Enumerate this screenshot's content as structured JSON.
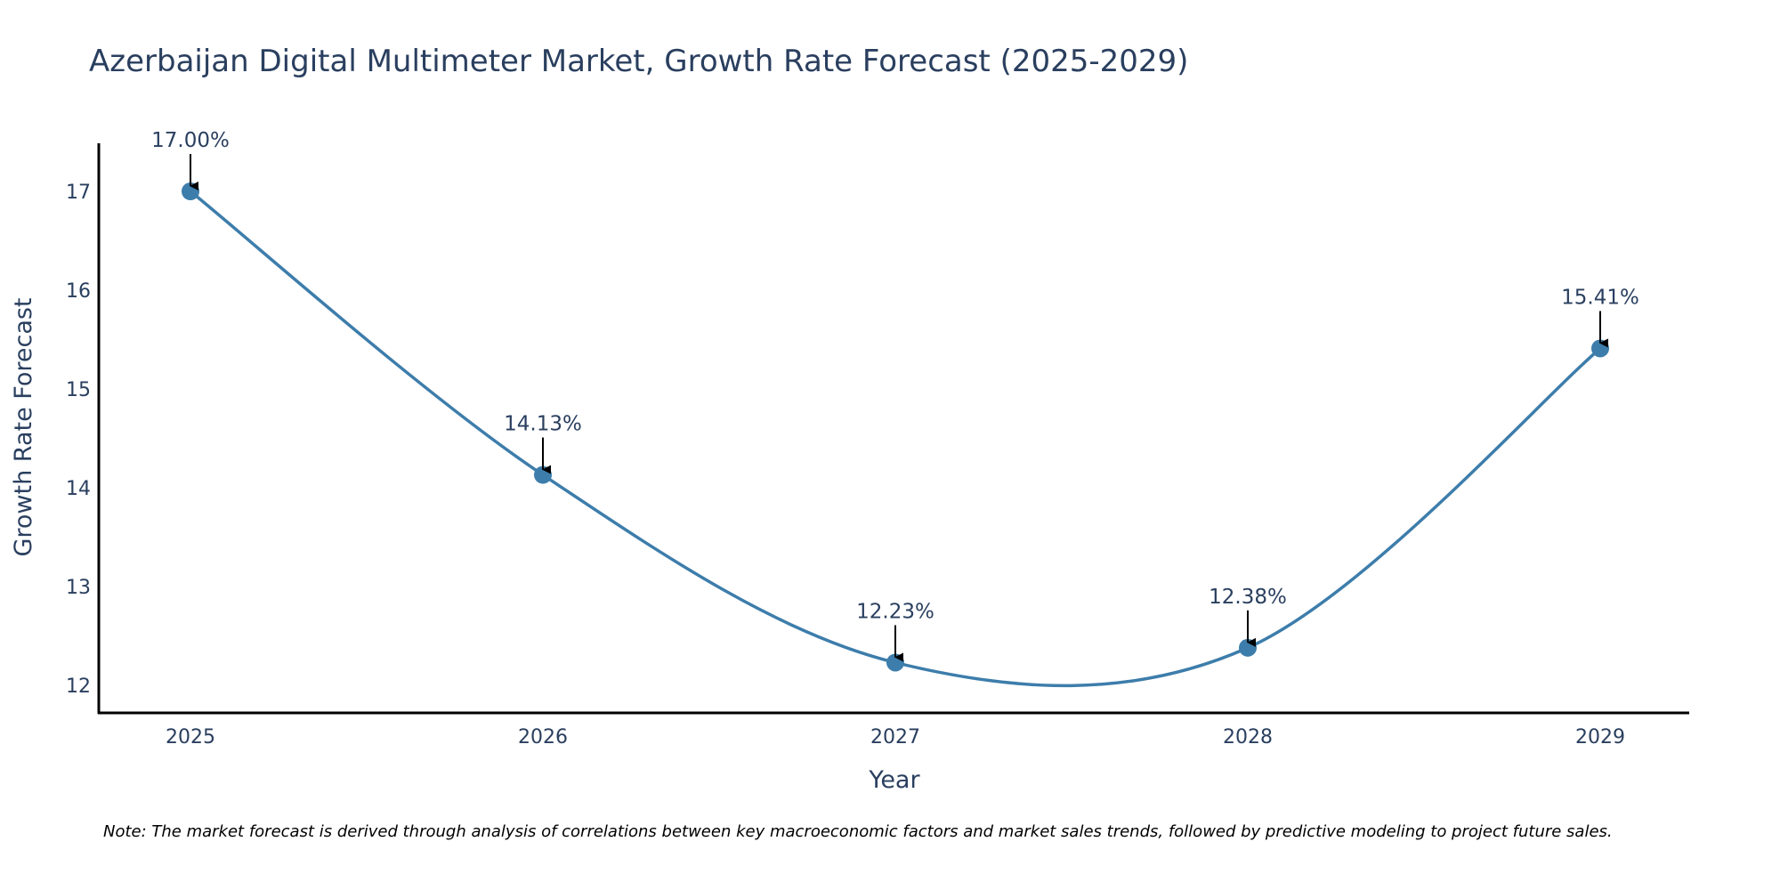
{
  "chart_data": {
    "type": "line",
    "title": "Azerbaijan Digital Multimeter Market, Growth Rate Forecast (2025-2029)",
    "xlabel": "Year",
    "ylabel": "Growth Rate Forecast",
    "categories": [
      "2025",
      "2026",
      "2027",
      "2028",
      "2029"
    ],
    "values": [
      17.0,
      14.13,
      12.23,
      12.38,
      15.41
    ],
    "data_labels": [
      "17.00%",
      "14.13%",
      "12.23%",
      "12.38%",
      "15.41%"
    ],
    "yticks": [
      12,
      13,
      14,
      15,
      16,
      17
    ],
    "ylim": [
      11.7,
      17.5
    ],
    "line_shape": "spline",
    "grid": false,
    "line_color": "#3d7dab",
    "marker_color": "#3d7dab",
    "arrow_color": "#000000",
    "axis_color": "#000000",
    "note": "Note: The market forecast is derived through analysis of correlations between key macroeconomic factors and market sales trends, followed by predictive modeling to project future sales."
  }
}
